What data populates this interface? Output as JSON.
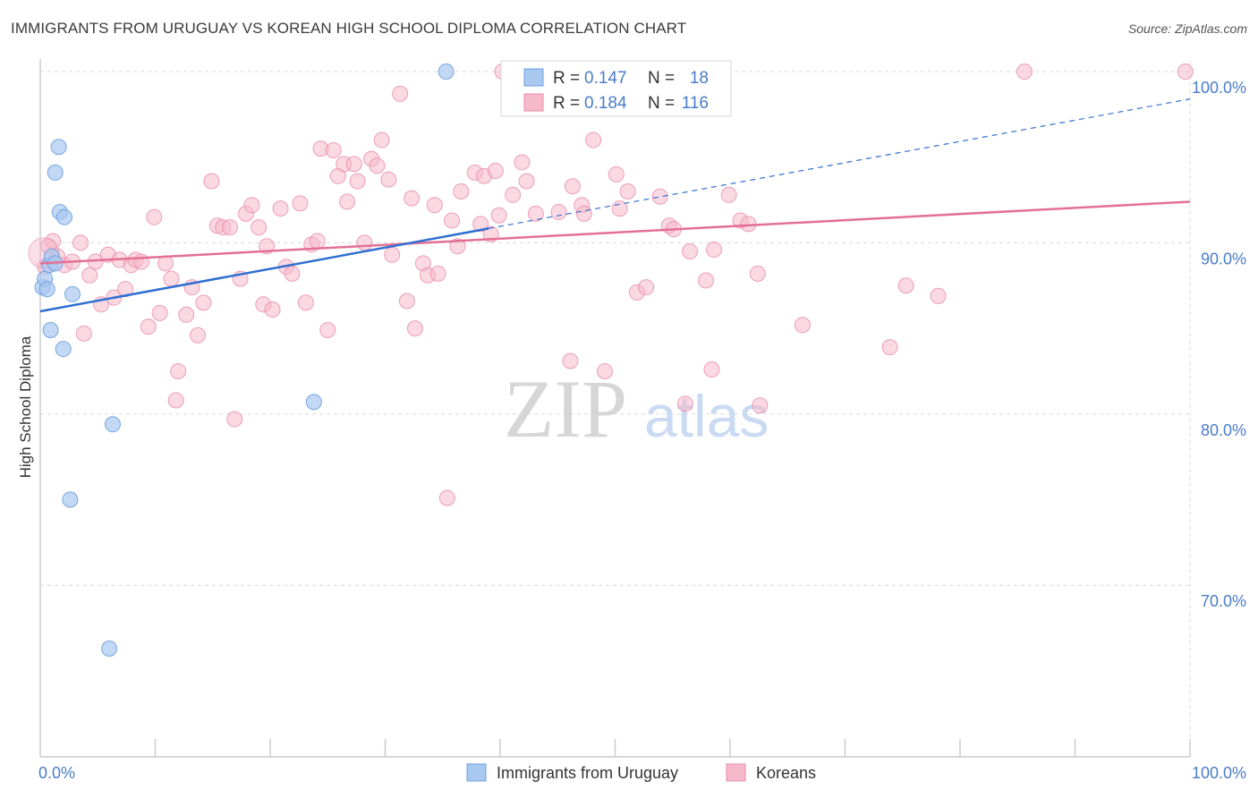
{
  "header": {
    "title": "IMMIGRANTS FROM URUGUAY VS KOREAN HIGH SCHOOL DIPLOMA CORRELATION CHART",
    "source": "Source: ZipAtlas.com"
  },
  "watermark": {
    "zip": "ZIP",
    "atlas": "atlas"
  },
  "colors": {
    "blue_fill": "#a9c8f0",
    "blue_stroke": "#6a9fe0",
    "blue_line": "#2f6fd1",
    "pink_fill": "#f6b9cc",
    "pink_stroke": "#e98aa8",
    "pink_line": "#e36f97",
    "tick_blue": "#4a7cc9",
    "grid": "#d8d8d8"
  },
  "legend": {
    "r_label": "R =",
    "n_label": "N =",
    "rows": [
      {
        "r": "0.147",
        "n": "18"
      },
      {
        "r": "0.184",
        "n": "116"
      }
    ]
  },
  "chart_data": {
    "type": "scatter",
    "title": "IMMIGRANTS FROM URUGUAY VS KOREAN HIGH SCHOOL DIPLOMA CORRELATION CHART",
    "xlabel": "",
    "ylabel": "High School Diploma",
    "xlim": [
      0,
      100
    ],
    "ylim": [
      60.5,
      101.5
    ],
    "x_tick_labels": [
      "0.0%",
      "100.0%"
    ],
    "y_ticks": [
      70,
      80,
      90,
      100
    ],
    "y_tick_labels": [
      "70.0%",
      "80.0%",
      "90.0%",
      "100.0%"
    ],
    "grid": true,
    "legend_position": "top-center",
    "series": [
      {
        "name": "Immigrants from Uruguay",
        "color": "#a9c8f0",
        "trend": {
          "x": [
            0,
            100
          ],
          "y": [
            86.0,
            98.4
          ],
          "solid_until_x": 39
        },
        "points": [
          {
            "x": 0.2,
            "y": 87.4
          },
          {
            "x": 0.4,
            "y": 87.9
          },
          {
            "x": 0.6,
            "y": 87.3
          },
          {
            "x": 0.8,
            "y": 88.7
          },
          {
            "x": 1.0,
            "y": 89.2
          },
          {
            "x": 1.3,
            "y": 88.8
          },
          {
            "x": 0.9,
            "y": 84.9
          },
          {
            "x": 1.3,
            "y": 94.1
          },
          {
            "x": 1.6,
            "y": 95.6
          },
          {
            "x": 1.7,
            "y": 91.8
          },
          {
            "x": 2.1,
            "y": 91.5
          },
          {
            "x": 2.0,
            "y": 83.8
          },
          {
            "x": 2.8,
            "y": 87.0
          },
          {
            "x": 2.6,
            "y": 75.0
          },
          {
            "x": 6.3,
            "y": 79.4
          },
          {
            "x": 6.0,
            "y": 66.3
          },
          {
            "x": 23.8,
            "y": 80.7
          },
          {
            "x": 35.3,
            "y": 100.0
          }
        ]
      },
      {
        "name": "Koreans",
        "color": "#f6b9cc",
        "trend": {
          "x": [
            0,
            100
          ],
          "y": [
            88.8,
            92.4
          ]
        },
        "points": [
          {
            "x": 0.4,
            "y": 88.6
          },
          {
            "x": 0.7,
            "y": 89.8
          },
          {
            "x": 1.1,
            "y": 90.1
          },
          {
            "x": 1.5,
            "y": 89.2
          },
          {
            "x": 2.1,
            "y": 88.7
          },
          {
            "x": 2.8,
            "y": 88.9
          },
          {
            "x": 3.5,
            "y": 90.0
          },
          {
            "x": 3.8,
            "y": 84.7
          },
          {
            "x": 4.3,
            "y": 88.1
          },
          {
            "x": 4.8,
            "y": 88.9
          },
          {
            "x": 5.3,
            "y": 86.4
          },
          {
            "x": 5.9,
            "y": 89.3
          },
          {
            "x": 6.4,
            "y": 86.8
          },
          {
            "x": 6.9,
            "y": 89.0
          },
          {
            "x": 7.4,
            "y": 87.3
          },
          {
            "x": 7.9,
            "y": 88.7
          },
          {
            "x": 8.3,
            "y": 89.0
          },
          {
            "x": 8.8,
            "y": 88.9
          },
          {
            "x": 9.4,
            "y": 85.1
          },
          {
            "x": 9.9,
            "y": 91.5
          },
          {
            "x": 10.4,
            "y": 85.9
          },
          {
            "x": 10.9,
            "y": 88.8
          },
          {
            "x": 11.4,
            "y": 87.9
          },
          {
            "x": 12.0,
            "y": 82.5
          },
          {
            "x": 11.8,
            "y": 80.8
          },
          {
            "x": 12.7,
            "y": 85.8
          },
          {
            "x": 13.2,
            "y": 87.4
          },
          {
            "x": 13.7,
            "y": 84.6
          },
          {
            "x": 14.2,
            "y": 86.5
          },
          {
            "x": 14.9,
            "y": 93.6
          },
          {
            "x": 15.4,
            "y": 91.0
          },
          {
            "x": 15.9,
            "y": 90.9
          },
          {
            "x": 16.5,
            "y": 90.9
          },
          {
            "x": 16.9,
            "y": 79.7
          },
          {
            "x": 17.4,
            "y": 87.9
          },
          {
            "x": 17.9,
            "y": 91.7
          },
          {
            "x": 18.4,
            "y": 92.2
          },
          {
            "x": 19.0,
            "y": 90.9
          },
          {
            "x": 19.4,
            "y": 86.4
          },
          {
            "x": 19.7,
            "y": 89.8
          },
          {
            "x": 20.2,
            "y": 86.1
          },
          {
            "x": 20.9,
            "y": 92.0
          },
          {
            "x": 21.4,
            "y": 88.6
          },
          {
            "x": 21.9,
            "y": 88.2
          },
          {
            "x": 22.6,
            "y": 92.3
          },
          {
            "x": 23.1,
            "y": 86.5
          },
          {
            "x": 23.6,
            "y": 89.9
          },
          {
            "x": 24.1,
            "y": 90.1
          },
          {
            "x": 24.4,
            "y": 95.5
          },
          {
            "x": 25.0,
            "y": 84.9
          },
          {
            "x": 25.5,
            "y": 95.4
          },
          {
            "x": 25.9,
            "y": 93.9
          },
          {
            "x": 26.4,
            "y": 94.6
          },
          {
            "x": 26.7,
            "y": 92.4
          },
          {
            "x": 27.3,
            "y": 94.6
          },
          {
            "x": 27.6,
            "y": 93.6
          },
          {
            "x": 28.2,
            "y": 90.0
          },
          {
            "x": 28.8,
            "y": 94.9
          },
          {
            "x": 29.3,
            "y": 94.5
          },
          {
            "x": 29.7,
            "y": 96.0
          },
          {
            "x": 30.3,
            "y": 93.7
          },
          {
            "x": 30.6,
            "y": 89.3
          },
          {
            "x": 31.3,
            "y": 98.7
          },
          {
            "x": 31.9,
            "y": 86.6
          },
          {
            "x": 32.3,
            "y": 92.6
          },
          {
            "x": 32.6,
            "y": 85.0
          },
          {
            "x": 33.3,
            "y": 88.8
          },
          {
            "x": 33.7,
            "y": 88.1
          },
          {
            "x": 34.3,
            "y": 92.2
          },
          {
            "x": 34.6,
            "y": 88.2
          },
          {
            "x": 35.4,
            "y": 75.1
          },
          {
            "x": 35.8,
            "y": 91.3
          },
          {
            "x": 36.3,
            "y": 89.8
          },
          {
            "x": 36.6,
            "y": 93.0
          },
          {
            "x": 37.8,
            "y": 94.1
          },
          {
            "x": 38.3,
            "y": 91.1
          },
          {
            "x": 38.6,
            "y": 93.9
          },
          {
            "x": 39.2,
            "y": 90.5
          },
          {
            "x": 39.6,
            "y": 94.2
          },
          {
            "x": 39.9,
            "y": 91.6
          },
          {
            "x": 40.2,
            "y": 100.0
          },
          {
            "x": 41.1,
            "y": 92.8
          },
          {
            "x": 41.9,
            "y": 94.7
          },
          {
            "x": 42.3,
            "y": 93.6
          },
          {
            "x": 43.1,
            "y": 91.7
          },
          {
            "x": 45.1,
            "y": 91.8
          },
          {
            "x": 46.1,
            "y": 83.1
          },
          {
            "x": 46.3,
            "y": 93.3
          },
          {
            "x": 47.1,
            "y": 92.2
          },
          {
            "x": 47.3,
            "y": 91.7
          },
          {
            "x": 48.1,
            "y": 96.0
          },
          {
            "x": 49.1,
            "y": 82.5
          },
          {
            "x": 50.1,
            "y": 94.0
          },
          {
            "x": 50.4,
            "y": 92.0
          },
          {
            "x": 51.1,
            "y": 93.0
          },
          {
            "x": 51.9,
            "y": 87.1
          },
          {
            "x": 52.7,
            "y": 87.4
          },
          {
            "x": 53.9,
            "y": 92.7
          },
          {
            "x": 54.7,
            "y": 91.0
          },
          {
            "x": 55.1,
            "y": 90.8
          },
          {
            "x": 56.1,
            "y": 80.6
          },
          {
            "x": 56.5,
            "y": 89.5
          },
          {
            "x": 57.9,
            "y": 87.8
          },
          {
            "x": 58.4,
            "y": 82.6
          },
          {
            "x": 58.6,
            "y": 89.6
          },
          {
            "x": 59.9,
            "y": 92.8
          },
          {
            "x": 60.9,
            "y": 91.3
          },
          {
            "x": 61.6,
            "y": 91.1
          },
          {
            "x": 62.4,
            "y": 88.2
          },
          {
            "x": 62.6,
            "y": 80.5
          },
          {
            "x": 66.3,
            "y": 85.2
          },
          {
            "x": 73.9,
            "y": 83.9
          },
          {
            "x": 75.3,
            "y": 87.5
          },
          {
            "x": 78.1,
            "y": 86.9
          },
          {
            "x": 85.6,
            "y": 100.0
          },
          {
            "x": 99.6,
            "y": 100.0
          }
        ]
      }
    ]
  }
}
